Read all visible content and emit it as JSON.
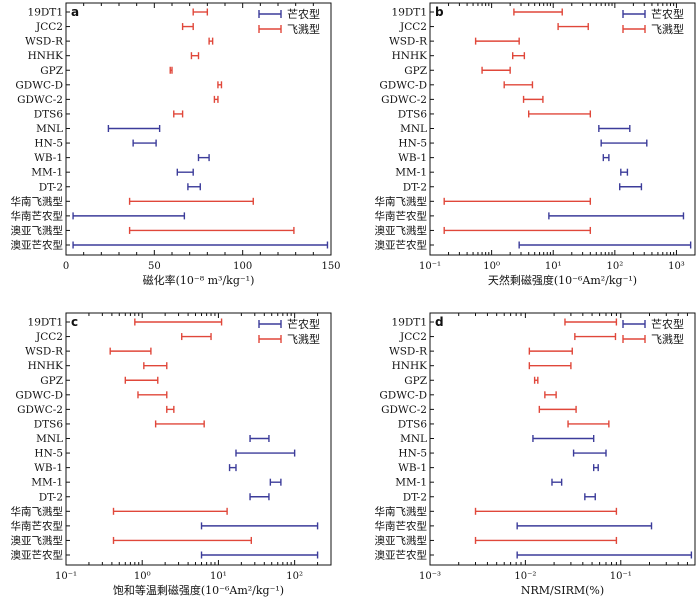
{
  "colors": {
    "mangnong": "#3c3c9a",
    "feijian": "#e0473a"
  },
  "chart_data": [
    {
      "type": "range",
      "panel": "a",
      "xlabel": "磁化率(10⁻⁸ m³/kg⁻¹)",
      "xscale": "linear",
      "xlim": [
        0,
        150
      ],
      "xticks": [
        0,
        50,
        100,
        150
      ],
      "xtick_labels": [
        "0",
        "50",
        "100",
        "150"
      ],
      "legend": [
        {
          "name": "芒农型",
          "color": "#3c3c9a"
        },
        {
          "name": "飞溅型",
          "color": "#e0473a"
        }
      ],
      "legend_position": "top-right",
      "categories": [
        "19DT1",
        "JCC2",
        "WSD-R",
        "HNHK",
        "GPZ",
        "GDWC-D",
        "GDWC-2",
        "DTS6",
        "MNL",
        "HN-5",
        "WB-1",
        "MM-1",
        "DT-2",
        "华南飞溅型",
        "华南芒农型",
        "澳亚飞溅型",
        "澳亚芒农型"
      ],
      "ranges": [
        [
          72,
          80
        ],
        [
          66,
          72
        ],
        [
          81,
          83
        ],
        [
          71,
          75
        ],
        [
          59,
          60
        ],
        [
          86,
          88
        ],
        [
          84,
          86
        ],
        [
          61,
          66
        ],
        [
          24,
          53
        ],
        [
          38,
          51
        ],
        [
          75,
          81
        ],
        [
          63,
          72
        ],
        [
          69,
          76
        ],
        [
          36,
          106
        ],
        [
          4,
          67
        ],
        [
          36,
          129
        ],
        [
          4,
          148
        ]
      ],
      "types": [
        "feijian",
        "feijian",
        "feijian",
        "feijian",
        "feijian",
        "feijian",
        "feijian",
        "feijian",
        "mangnong",
        "mangnong",
        "mangnong",
        "mangnong",
        "mangnong",
        "feijian",
        "mangnong",
        "feijian",
        "mangnong"
      ]
    },
    {
      "type": "range",
      "panel": "b",
      "xlabel": "天然剩磁强度(10⁻⁶Am²/kg⁻¹)",
      "xscale": "log",
      "xlim": [
        0.1,
        2000
      ],
      "xticks": [
        0.1,
        1,
        10,
        100,
        1000
      ],
      "xtick_labels": [
        "10⁻¹",
        "10⁰",
        "10¹",
        "10²",
        "10³"
      ],
      "legend": [
        {
          "name": "芒农型",
          "color": "#3c3c9a"
        },
        {
          "name": "飞溅型",
          "color": "#e0473a"
        }
      ],
      "legend_position": "top-right",
      "categories": [
        "19DT1",
        "JCC2",
        "WSD-R",
        "HNHK",
        "GPZ",
        "GDWC-D",
        "GDWC-2",
        "DTS6",
        "MNL",
        "HN-5",
        "WB-1",
        "MM-1",
        "DT-2",
        "华南飞溅型",
        "华南芒农型",
        "澳亚飞溅型",
        "澳亚芒农型"
      ],
      "ranges": [
        [
          2.3,
          14
        ],
        [
          12,
          37
        ],
        [
          0.55,
          2.8
        ],
        [
          2.2,
          3.4
        ],
        [
          0.7,
          2
        ],
        [
          1.6,
          4.6
        ],
        [
          3.3,
          6.8
        ],
        [
          4,
          40
        ],
        [
          55,
          175
        ],
        [
          60,
          330
        ],
        [
          65,
          80
        ],
        [
          125,
          160
        ],
        [
          120,
          270
        ],
        [
          0.17,
          40
        ],
        [
          8.5,
          1300
        ],
        [
          0.17,
          40
        ],
        [
          2.8,
          1700
        ]
      ],
      "types": [
        "feijian",
        "feijian",
        "feijian",
        "feijian",
        "feijian",
        "feijian",
        "feijian",
        "feijian",
        "mangnong",
        "mangnong",
        "mangnong",
        "mangnong",
        "mangnong",
        "feijian",
        "mangnong",
        "feijian",
        "mangnong"
      ]
    },
    {
      "type": "range",
      "panel": "c",
      "xlabel": "饱和等温剩磁强度(10⁻⁶Am²/kg⁻¹)",
      "xscale": "log",
      "xlim": [
        0.1,
        300
      ],
      "xticks": [
        0.1,
        1,
        10,
        100
      ],
      "xtick_labels": [
        "10⁻¹",
        "10⁰",
        "10¹",
        "10²"
      ],
      "legend": [
        {
          "name": "芒农型",
          "color": "#3c3c9a"
        },
        {
          "name": "飞溅型",
          "color": "#e0473a"
        }
      ],
      "legend_position": "top-right",
      "categories": [
        "19DT1",
        "JCC2",
        "WSD-R",
        "HNHK",
        "GPZ",
        "GDWC-D",
        "GDWC-2",
        "DTS6",
        "MNL",
        "HN-5",
        "WB-1",
        "MM-1",
        "DT-2",
        "华南飞溅型",
        "华南芒农型",
        "澳亚飞溅型",
        "澳亚芒农型"
      ],
      "ranges": [
        [
          0.8,
          11
        ],
        [
          3.3,
          8
        ],
        [
          0.38,
          1.3
        ],
        [
          1.05,
          2.1
        ],
        [
          0.6,
          1.6
        ],
        [
          0.88,
          2.1
        ],
        [
          2.1,
          2.6
        ],
        [
          1.5,
          6.5
        ],
        [
          26,
          46
        ],
        [
          17,
          100
        ],
        [
          14,
          17
        ],
        [
          48,
          66
        ],
        [
          26,
          46
        ],
        [
          0.42,
          13
        ],
        [
          6,
          200
        ],
        [
          0.42,
          27
        ],
        [
          6,
          200
        ]
      ],
      "types": [
        "feijian",
        "feijian",
        "feijian",
        "feijian",
        "feijian",
        "feijian",
        "feijian",
        "feijian",
        "mangnong",
        "mangnong",
        "mangnong",
        "mangnong",
        "mangnong",
        "feijian",
        "mangnong",
        "feijian",
        "mangnong"
      ]
    },
    {
      "type": "range",
      "panel": "d",
      "xlabel": "NRM/SIRM(%)",
      "xscale": "log",
      "xlim": [
        0.001,
        0.6
      ],
      "xticks": [
        0.001,
        0.01,
        0.1
      ],
      "xtick_labels": [
        "10⁻³",
        "10⁻²",
        "10⁻¹"
      ],
      "legend": [
        {
          "name": "芒农型",
          "color": "#3c3c9a"
        },
        {
          "name": "飞溅型",
          "color": "#e0473a"
        }
      ],
      "legend_position": "top-right",
      "categories": [
        "19DT1",
        "JCC2",
        "WSD-R",
        "HNHK",
        "GPZ",
        "GDWC-D",
        "GDWC-2",
        "DTS6",
        "MNL",
        "HN-5",
        "WB-1",
        "MM-1",
        "DT-2",
        "华南飞溅型",
        "华南芒农型",
        "澳亚飞溅型",
        "澳亚芒农型"
      ],
      "ranges": [
        [
          0.026,
          0.09
        ],
        [
          0.033,
          0.088
        ],
        [
          0.011,
          0.031
        ],
        [
          0.011,
          0.03
        ],
        [
          0.0125,
          0.0135
        ],
        [
          0.016,
          0.021
        ],
        [
          0.014,
          0.034
        ],
        [
          0.028,
          0.075
        ],
        [
          0.012,
          0.052
        ],
        [
          0.032,
          0.07
        ],
        [
          0.052,
          0.058
        ],
        [
          0.019,
          0.024
        ],
        [
          0.042,
          0.054
        ],
        [
          0.003,
          0.09
        ],
        [
          0.0082,
          0.21
        ],
        [
          0.003,
          0.09
        ],
        [
          0.0082,
          0.55
        ]
      ],
      "types": [
        "feijian",
        "feijian",
        "feijian",
        "feijian",
        "feijian",
        "feijian",
        "feijian",
        "feijian",
        "mangnong",
        "mangnong",
        "mangnong",
        "mangnong",
        "mangnong",
        "feijian",
        "mangnong",
        "feijian",
        "mangnong"
      ]
    }
  ]
}
